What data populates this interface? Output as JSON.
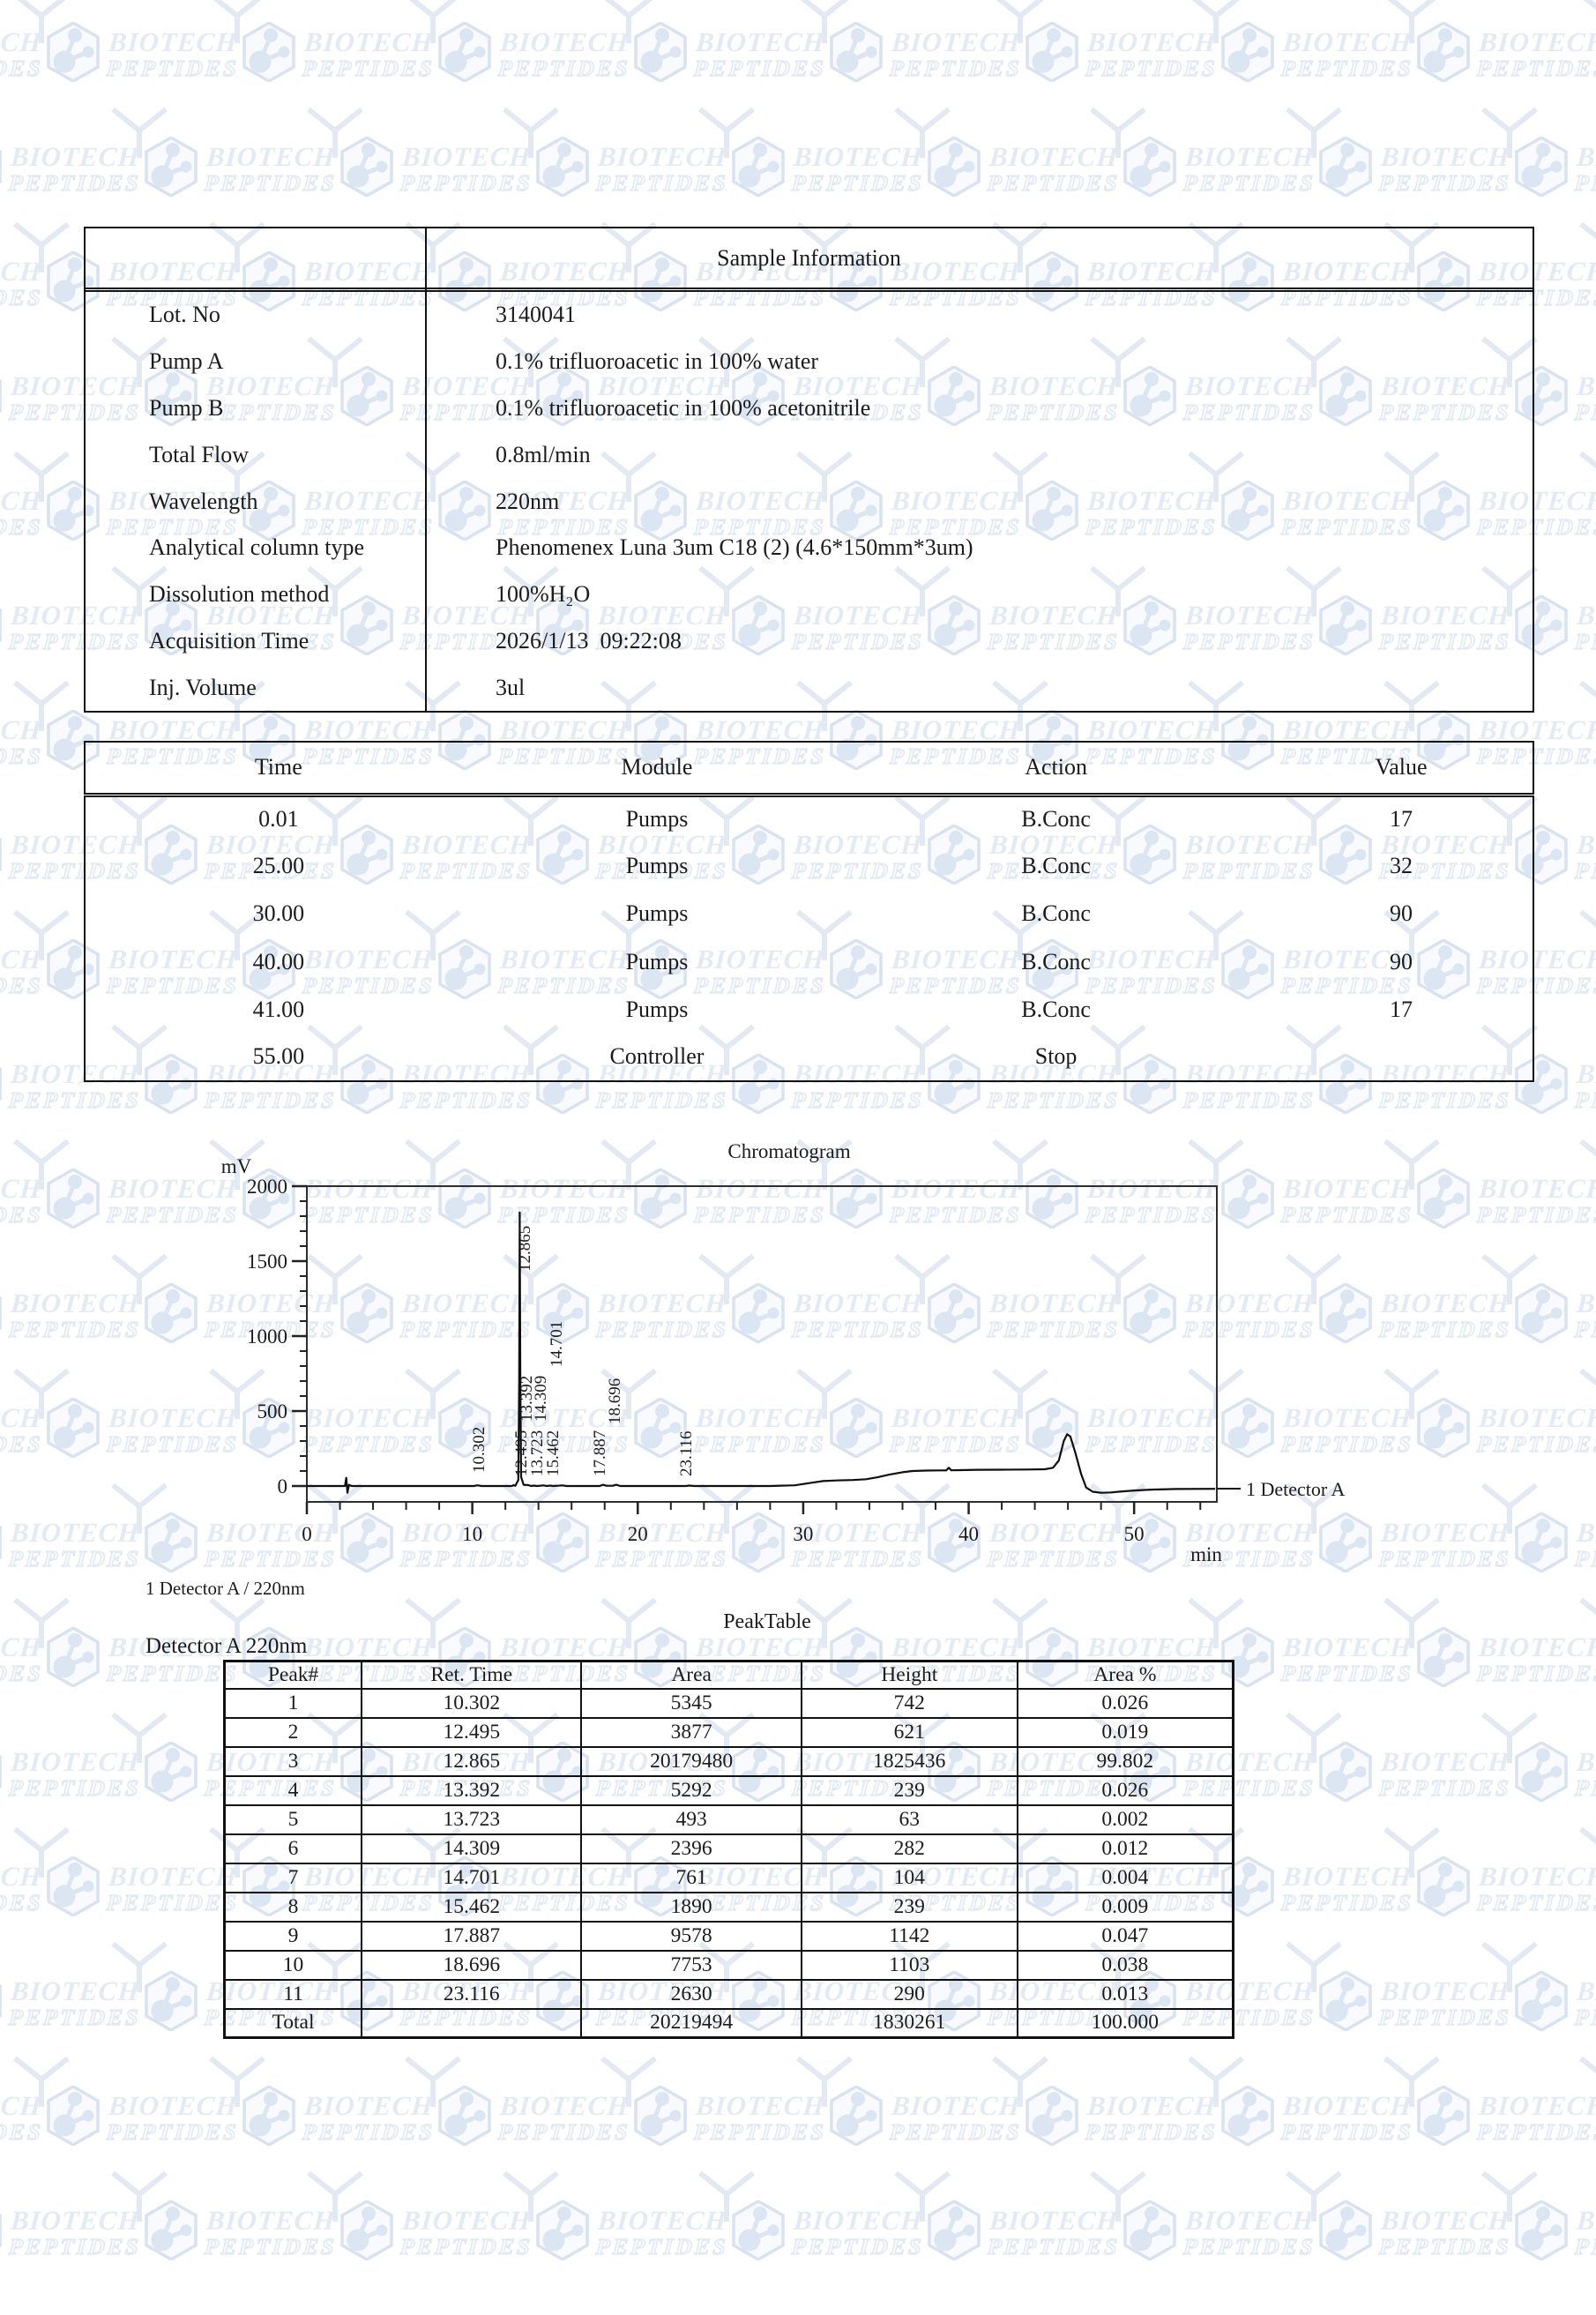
{
  "watermark": {
    "brand_top": "BIOTECH",
    "brand_bottom": "PEPTIDES"
  },
  "sample_info": {
    "title": "Sample Information",
    "rows": [
      {
        "label": "Lot. No",
        "value": "3140041"
      },
      {
        "label": "Pump A",
        "value": "0.1% trifluoroacetic in 100% water"
      },
      {
        "label": "Pump B",
        "value": "0.1% trifluoroacetic in 100% acetonitrile"
      },
      {
        "label": "Total Flow",
        "value": "0.8ml/min"
      },
      {
        "label": "Wavelength",
        "value": "220nm"
      },
      {
        "label": "Analytical column type",
        "value": "Phenomenex Luna 3um C18 (2) (4.6*150mm*3um)"
      },
      {
        "label": "Dissolution method",
        "value": "100%H₂O"
      },
      {
        "label": "Acquisition Time",
        "value": "2026/1/13  09:22:08"
      },
      {
        "label": "Inj. Volume",
        "value": "3ul"
      }
    ]
  },
  "program_table": {
    "headers": [
      "Time",
      "Module",
      "Action",
      "Value"
    ],
    "rows": [
      [
        "0.01",
        "Pumps",
        "B.Conc",
        "17"
      ],
      [
        "25.00",
        "Pumps",
        "B.Conc",
        "32"
      ],
      [
        "30.00",
        "Pumps",
        "B.Conc",
        "90"
      ],
      [
        "40.00",
        "Pumps",
        "B.Conc",
        "90"
      ],
      [
        "41.00",
        "Pumps",
        "B.Conc",
        "17"
      ],
      [
        "55.00",
        "Controller",
        "Stop",
        ""
      ]
    ]
  },
  "peak_section": {
    "detector_line": "1 Detector A / 220nm",
    "title": "PeakTable",
    "subtitle": "Detector A 220nm",
    "headers": [
      "Peak#",
      "Ret. Time",
      "Area",
      "Height",
      "Area %"
    ],
    "rows": [
      [
        "1",
        "10.302",
        "5345",
        "742",
        "0.026"
      ],
      [
        "2",
        "12.495",
        "3877",
        "621",
        "0.019"
      ],
      [
        "3",
        "12.865",
        "20179480",
        "1825436",
        "99.802"
      ],
      [
        "4",
        "13.392",
        "5292",
        "239",
        "0.026"
      ],
      [
        "5",
        "13.723",
        "493",
        "63",
        "0.002"
      ],
      [
        "6",
        "14.309",
        "2396",
        "282",
        "0.012"
      ],
      [
        "7",
        "14.701",
        "761",
        "104",
        "0.004"
      ],
      [
        "8",
        "15.462",
        "1890",
        "239",
        "0.009"
      ],
      [
        "9",
        "17.887",
        "9578",
        "1142",
        "0.047"
      ],
      [
        "10",
        "18.696",
        "7753",
        "1103",
        "0.038"
      ],
      [
        "11",
        "23.116",
        "2630",
        "290",
        "0.013"
      ],
      [
        "Total",
        "",
        "20219494",
        "1830261",
        "100.000"
      ]
    ]
  },
  "chart_data": {
    "type": "line",
    "title": "Chromatogram",
    "xlabel": "min",
    "ylabel": "mV",
    "xlim": [
      0,
      55
    ],
    "ylim": [
      0,
      2000
    ],
    "xtick_major": [
      0,
      10,
      20,
      30,
      40,
      50
    ],
    "xtick_minor_step": 2,
    "ytick_major": [
      0,
      500,
      1000,
      1500,
      2000
    ],
    "ytick_minor_step": 100,
    "grid": "off",
    "legend": "1 Detector A",
    "legend_position": "right-of-plot-at-baseline",
    "series": [
      {
        "name": "Detector A",
        "trace": [
          [
            0,
            0
          ],
          [
            2.3,
            0
          ],
          [
            2.38,
            55
          ],
          [
            2.45,
            -45
          ],
          [
            2.55,
            8
          ],
          [
            2.7,
            0
          ],
          [
            10.1,
            0
          ],
          [
            10.302,
            5
          ],
          [
            10.55,
            0
          ],
          [
            12.4,
            0
          ],
          [
            12.495,
            6
          ],
          [
            12.6,
            2
          ],
          [
            12.78,
            40
          ],
          [
            12.835,
            700
          ],
          [
            12.865,
            1825
          ],
          [
            12.9,
            700
          ],
          [
            12.95,
            60
          ],
          [
            13.1,
            8
          ],
          [
            13.392,
            6
          ],
          [
            13.55,
            0
          ],
          [
            13.723,
            3
          ],
          [
            13.9,
            0
          ],
          [
            14.309,
            4
          ],
          [
            14.5,
            0
          ],
          [
            14.701,
            3
          ],
          [
            14.9,
            0
          ],
          [
            15.462,
            4
          ],
          [
            15.7,
            0
          ],
          [
            17.7,
            0
          ],
          [
            17.887,
            8
          ],
          [
            18.1,
            2
          ],
          [
            18.5,
            2
          ],
          [
            18.696,
            8
          ],
          [
            18.95,
            0
          ],
          [
            22.9,
            0
          ],
          [
            23.116,
            3
          ],
          [
            23.4,
            0
          ],
          [
            28.0,
            0
          ],
          [
            29.5,
            5
          ],
          [
            30.5,
            22
          ],
          [
            31.2,
            33
          ],
          [
            32,
            37
          ],
          [
            33,
            40
          ],
          [
            33.8,
            45
          ],
          [
            34.5,
            58
          ],
          [
            35.2,
            76
          ],
          [
            36,
            92
          ],
          [
            36.6,
            100
          ],
          [
            37.4,
            103
          ],
          [
            38.2,
            104
          ],
          [
            38.65,
            104
          ],
          [
            38.8,
            122
          ],
          [
            38.95,
            105
          ],
          [
            39.5,
            106
          ],
          [
            40.5,
            108
          ],
          [
            42,
            109
          ],
          [
            43.5,
            110
          ],
          [
            44.6,
            112
          ],
          [
            45.1,
            122
          ],
          [
            45.45,
            170
          ],
          [
            45.75,
            300
          ],
          [
            45.95,
            345
          ],
          [
            46.15,
            330
          ],
          [
            46.45,
            220
          ],
          [
            46.8,
            80
          ],
          [
            47.1,
            -10
          ],
          [
            47.5,
            -38
          ],
          [
            48,
            -45
          ],
          [
            48.6,
            -43
          ],
          [
            49.3,
            -36
          ],
          [
            50,
            -30
          ],
          [
            51,
            -24
          ],
          [
            52.5,
            -20
          ],
          [
            54.9,
            -19
          ]
        ]
      }
    ],
    "peak_labels": [
      {
        "label": "10.302",
        "lx": 549,
        "by": 1670
      },
      {
        "label": "12.495",
        "lx": 597,
        "by": 1674
      },
      {
        "label": "13.723",
        "lx": 615,
        "by": 1674
      },
      {
        "label": "15.462",
        "lx": 633,
        "by": 1674
      },
      {
        "label": "17.887",
        "lx": 686,
        "by": 1674
      },
      {
        "label": "23.116",
        "lx": 784,
        "by": 1674
      },
      {
        "label": "13.392",
        "lx": 603,
        "by": 1612
      },
      {
        "label": "14.309",
        "lx": 619,
        "by": 1612
      },
      {
        "label": "18.696",
        "lx": 703,
        "by": 1615
      },
      {
        "label": "14.701",
        "lx": 637,
        "by": 1550
      },
      {
        "label": "12.865",
        "lx": 601,
        "by": 1442
      }
    ]
  }
}
